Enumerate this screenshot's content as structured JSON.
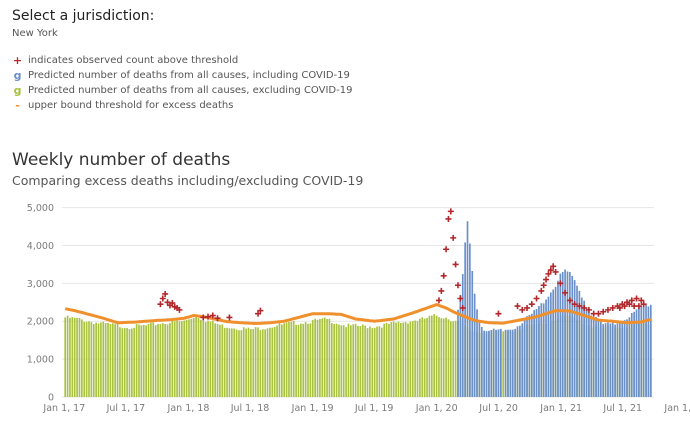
{
  "filter": {
    "label": "Select a jurisdiction:",
    "value": "New York"
  },
  "legend": [
    {
      "symbol": "+",
      "color": "#c0262c",
      "text": "indicates observed count above threshold"
    },
    {
      "symbol": "g",
      "color": "#6a8fc9",
      "text": "Predicted number of deaths from all causes, including COVID-19"
    },
    {
      "symbol": "g",
      "color": "#a8c040",
      "text": "Predicted number of deaths from all causes, excluding COVID-19"
    },
    {
      "symbol": "-",
      "color": "#f0902c",
      "text": "upper bound threshold for excess deaths"
    }
  ],
  "colors": {
    "incl": "#6a8fc9",
    "excl": "#a9c23f",
    "threshold": "#f0902c",
    "marker": "#b3262a",
    "grid": "#e6e6e6"
  },
  "chart_data": {
    "type": "bar",
    "title": "Weekly number of deaths",
    "subtitle": "Comparing excess deaths including/excluding COVID-19",
    "start_date": "2016-12-31",
    "weeks": 247,
    "ylim": [
      0,
      5200
    ],
    "y_ticks": [
      0,
      1000,
      2000,
      3000,
      4000,
      5000
    ],
    "y_tick_labels": [
      "0",
      "1,000",
      "2,000",
      "3,000",
      "4,000",
      "5,000"
    ],
    "x_tick_labels": [
      "Jan 1, 17",
      "Jul 1, 17",
      "Jan 1, 18",
      "Jul 1, 18",
      "Jan 1, 19",
      "Jul 1, 19",
      "Jan 1, 20",
      "Jul 1, 20",
      "Jan 1, 21",
      "Jul 1, 21",
      "Jan 1, 22"
    ],
    "x_tick_dates": [
      "2017-01-01",
      "2017-07-01",
      "2018-01-01",
      "2018-07-01",
      "2019-01-01",
      "2019-07-01",
      "2020-01-01",
      "2020-07-01",
      "2021-01-01",
      "2021-07-01",
      "2022-01-01"
    ],
    "excl_covid_keypoints": [
      [
        0,
        2100
      ],
      [
        6,
        2050
      ],
      [
        14,
        1950
      ],
      [
        26,
        1850
      ],
      [
        34,
        1880
      ],
      [
        40,
        1950
      ],
      [
        50,
        2000
      ],
      [
        55,
        2150
      ],
      [
        58,
        2050
      ],
      [
        66,
        1880
      ],
      [
        78,
        1780
      ],
      [
        88,
        1880
      ],
      [
        96,
        1950
      ],
      [
        104,
        2000
      ],
      [
        110,
        2050
      ],
      [
        118,
        1880
      ],
      [
        130,
        1860
      ],
      [
        140,
        1960
      ],
      [
        150,
        2050
      ],
      [
        156,
        2150
      ],
      [
        160,
        2100
      ],
      [
        164,
        2000
      ],
      [
        166,
        1950
      ],
      [
        170,
        1750
      ],
      [
        174,
        1720
      ],
      [
        182,
        1720
      ],
      [
        188,
        1760
      ],
      [
        196,
        1880
      ],
      [
        204,
        2000
      ],
      [
        210,
        2150
      ],
      [
        214,
        2050
      ],
      [
        220,
        1900
      ],
      [
        226,
        1800
      ],
      [
        232,
        1850
      ],
      [
        238,
        1880
      ],
      [
        246,
        1950
      ]
    ],
    "incl_covid_extra": [
      [
        164,
        0
      ],
      [
        165,
        300
      ],
      [
        166,
        700
      ],
      [
        167,
        1300
      ],
      [
        168,
        2200
      ],
      [
        169,
        2800
      ],
      [
        170,
        2300
      ],
      [
        171,
        1600
      ],
      [
        172,
        1000
      ],
      [
        173,
        600
      ],
      [
        174,
        300
      ],
      [
        175,
        150
      ],
      [
        176,
        80
      ],
      [
        178,
        30
      ],
      [
        184,
        20
      ],
      [
        188,
        50
      ],
      [
        192,
        150
      ],
      [
        196,
        300
      ],
      [
        200,
        500
      ],
      [
        203,
        700
      ],
      [
        206,
        900
      ],
      [
        208,
        1100
      ],
      [
        210,
        1200
      ],
      [
        212,
        1150
      ],
      [
        214,
        1000
      ],
      [
        216,
        800
      ],
      [
        218,
        600
      ],
      [
        220,
        350
      ],
      [
        222,
        250
      ],
      [
        226,
        120
      ],
      [
        230,
        80
      ],
      [
        234,
        150
      ],
      [
        238,
        300
      ],
      [
        242,
        450
      ],
      [
        246,
        500
      ]
    ],
    "threshold_keypoints": [
      [
        0,
        2330
      ],
      [
        4,
        2280
      ],
      [
        10,
        2180
      ],
      [
        16,
        2080
      ],
      [
        22,
        1960
      ],
      [
        30,
        1980
      ],
      [
        38,
        2020
      ],
      [
        44,
        2040
      ],
      [
        50,
        2080
      ],
      [
        54,
        2150
      ],
      [
        58,
        2120
      ],
      [
        62,
        2070
      ],
      [
        68,
        1990
      ],
      [
        74,
        1960
      ],
      [
        80,
        1940
      ],
      [
        86,
        1960
      ],
      [
        92,
        2000
      ],
      [
        98,
        2100
      ],
      [
        104,
        2200
      ],
      [
        110,
        2200
      ],
      [
        116,
        2180
      ],
      [
        122,
        2060
      ],
      [
        130,
        2000
      ],
      [
        138,
        2060
      ],
      [
        146,
        2220
      ],
      [
        152,
        2350
      ],
      [
        156,
        2440
      ],
      [
        160,
        2350
      ],
      [
        164,
        2220
      ],
      [
        168,
        2120
      ],
      [
        172,
        2020
      ],
      [
        178,
        1960
      ],
      [
        184,
        1950
      ],
      [
        190,
        2020
      ],
      [
        198,
        2120
      ],
      [
        206,
        2280
      ],
      [
        212,
        2270
      ],
      [
        218,
        2150
      ],
      [
        224,
        2030
      ],
      [
        230,
        2000
      ],
      [
        236,
        1960
      ],
      [
        242,
        1980
      ],
      [
        246,
        2050
      ]
    ],
    "observed_above_threshold": [
      [
        40,
        2450
      ],
      [
        41,
        2600
      ],
      [
        42,
        2720
      ],
      [
        43,
        2500
      ],
      [
        44,
        2420
      ],
      [
        45,
        2480
      ],
      [
        46,
        2380
      ],
      [
        47,
        2350
      ],
      [
        48,
        2300
      ],
      [
        58,
        2100
      ],
      [
        60,
        2120
      ],
      [
        62,
        2150
      ],
      [
        64,
        2080
      ],
      [
        69,
        2100
      ],
      [
        81,
        2200
      ],
      [
        82,
        2280
      ],
      [
        157,
        2550
      ],
      [
        158,
        2800
      ],
      [
        159,
        3200
      ],
      [
        160,
        3900
      ],
      [
        161,
        4700
      ],
      [
        162,
        4900
      ],
      [
        163,
        4200
      ],
      [
        164,
        3500
      ],
      [
        165,
        2950
      ],
      [
        166,
        2600
      ],
      [
        167,
        2350
      ],
      [
        182,
        2200
      ],
      [
        190,
        2400
      ],
      [
        192,
        2300
      ],
      [
        194,
        2350
      ],
      [
        196,
        2450
      ],
      [
        198,
        2600
      ],
      [
        200,
        2800
      ],
      [
        201,
        2950
      ],
      [
        202,
        3100
      ],
      [
        203,
        3250
      ],
      [
        204,
        3350
      ],
      [
        205,
        3450
      ],
      [
        206,
        3300
      ],
      [
        208,
        3000
      ],
      [
        210,
        2750
      ],
      [
        212,
        2550
      ],
      [
        214,
        2450
      ],
      [
        216,
        2400
      ],
      [
        218,
        2350
      ],
      [
        220,
        2300
      ],
      [
        222,
        2200
      ],
      [
        224,
        2200
      ],
      [
        226,
        2250
      ],
      [
        228,
        2300
      ],
      [
        230,
        2350
      ],
      [
        232,
        2400
      ],
      [
        233,
        2350
      ],
      [
        234,
        2450
      ],
      [
        235,
        2400
      ],
      [
        236,
        2500
      ],
      [
        237,
        2450
      ],
      [
        238,
        2550
      ],
      [
        239,
        2400
      ],
      [
        240,
        2600
      ],
      [
        241,
        2400
      ],
      [
        242,
        2550
      ],
      [
        243,
        2450
      ]
    ]
  }
}
